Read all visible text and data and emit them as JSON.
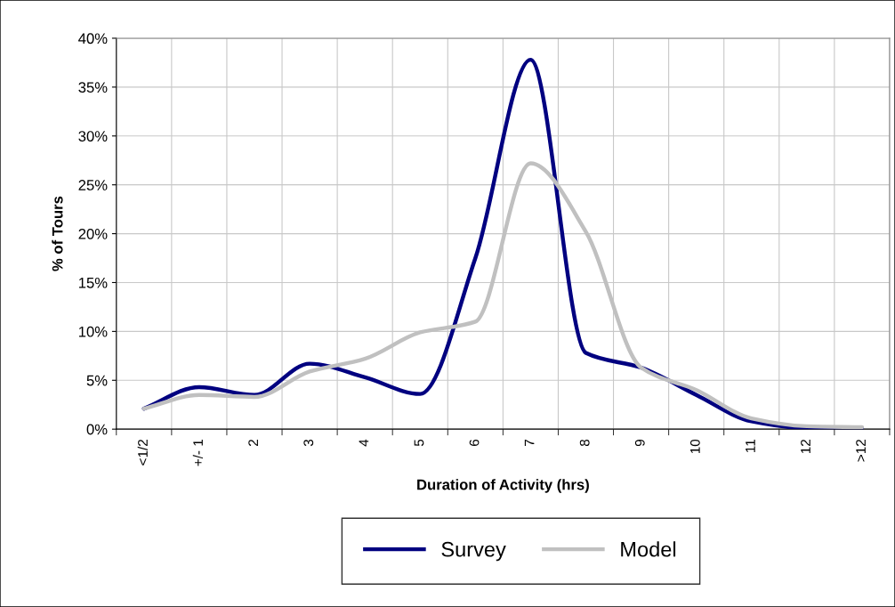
{
  "chart_data": {
    "type": "line",
    "xlabel": "Duration of Activity (hrs)",
    "ylabel": "% of Tours",
    "categories": [
      "<1/2",
      "+/- 1",
      "2",
      "3",
      "4",
      "5",
      "6",
      "7",
      "8",
      "9",
      "10",
      "11",
      "12",
      ">12"
    ],
    "series": [
      {
        "name": "Survey",
        "color": "#000080",
        "values": [
          2.1,
          4.3,
          3.5,
          6.7,
          5.3,
          3.6,
          17.5,
          37.8,
          7.8,
          6.3,
          3.5,
          0.8,
          0.1,
          0.1
        ]
      },
      {
        "name": "Model",
        "color": "#c0c0c0",
        "values": [
          2.1,
          3.5,
          3.3,
          5.9,
          7.2,
          9.9,
          11.0,
          27.2,
          20.2,
          6.3,
          4.0,
          1.1,
          0.3,
          0.2
        ]
      }
    ],
    "ylim": [
      0,
      40
    ],
    "yticks": [
      {
        "value": 0,
        "label": "0%"
      },
      {
        "value": 5,
        "label": "5%"
      },
      {
        "value": 10,
        "label": "10%"
      },
      {
        "value": 15,
        "label": "15%"
      },
      {
        "value": 20,
        "label": "20%"
      },
      {
        "value": 25,
        "label": "25%"
      },
      {
        "value": 30,
        "label": "30%"
      },
      {
        "value": 35,
        "label": "35%"
      },
      {
        "value": 40,
        "label": "40%"
      }
    ],
    "grid": true,
    "legend": "bottom",
    "marker": "none",
    "line_style": "solid"
  }
}
